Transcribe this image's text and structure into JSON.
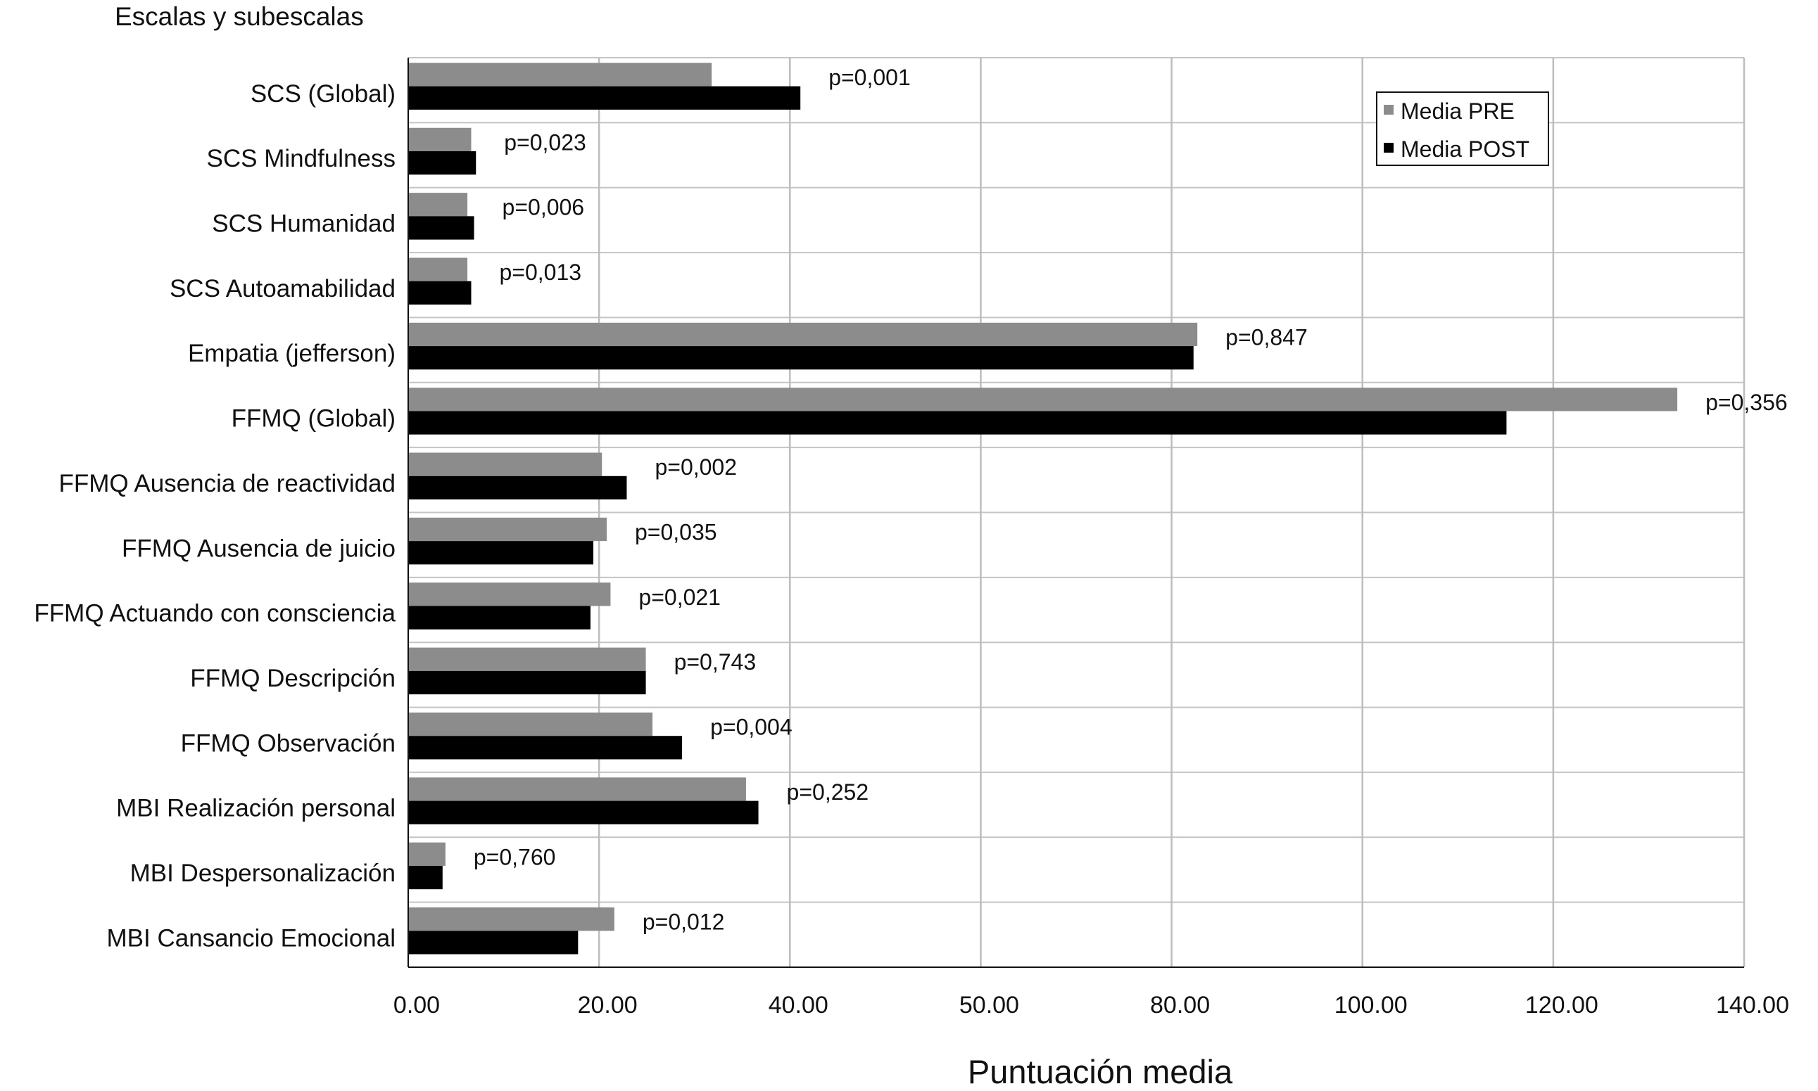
{
  "chart_data": {
    "type": "bar",
    "orientation": "horizontal",
    "title": "",
    "ylabel": "Escalas y subescalas",
    "xlabel": "Puntuación media",
    "xlim": [
      0,
      140
    ],
    "x_tick_labels": [
      "0.00",
      "20.00",
      "40.00",
      "50.00",
      "80.00",
      "100.00",
      "120.00",
      "140.00"
    ],
    "grid": true,
    "legend_position": "top-right",
    "categories": [
      "SCS (Global)",
      "SCS Mindfulness",
      "SCS Humanidad",
      "SCS Autoamabilidad",
      "Empatia (jefferson)",
      "FFMQ (Global)",
      "FFMQ Ausencia de reactividad",
      "FFMQ Ausencia de juicio",
      "FFMQ Actuando con consciencia",
      "FFMQ Descripción",
      "FFMQ Observación",
      "MBI Realización personal",
      "MBI Despersonalización",
      "MBI Cansancio Emocional"
    ],
    "series": [
      {
        "name": "Media PRE",
        "color": "#8c8c8c",
        "values": [
          31.8,
          6.6,
          6.2,
          6.2,
          82.7,
          133.0,
          20.3,
          20.8,
          21.2,
          24.9,
          25.6,
          35.4,
          3.9,
          21.6
        ]
      },
      {
        "name": "Media POST",
        "color": "#000000",
        "values": [
          41.1,
          7.1,
          6.9,
          6.6,
          82.3,
          115.1,
          22.9,
          19.4,
          19.1,
          24.9,
          28.7,
          36.7,
          3.6,
          17.8
        ]
      }
    ],
    "annotations": [
      "p=0,001",
      "p=0,023",
      "p=0,006",
      "p=0,013",
      "p=0,847",
      "p=0,356",
      "p=0,002",
      "p=0,035",
      "p=0,021",
      "p=0,743",
      "p=0,004",
      "p=0,252",
      "p=0,760",
      "p=0,012"
    ]
  }
}
